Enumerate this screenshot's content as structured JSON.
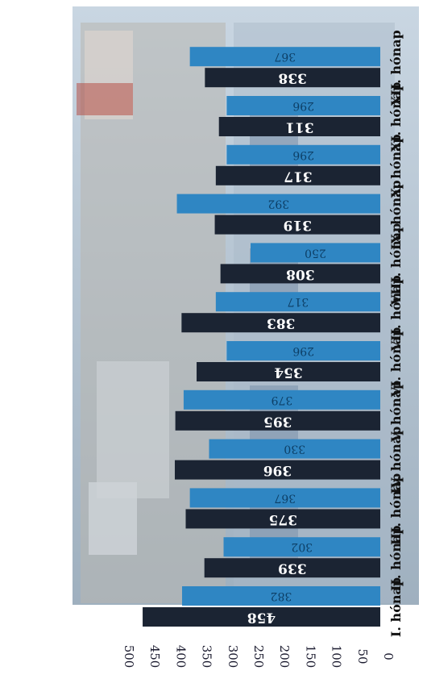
{
  "chart_data": {
    "type": "bar",
    "orientation": "horizontal",
    "value_axis_position": "left",
    "title": "",
    "categories": [
      "I. hónap",
      "II. hónap",
      "III. hónap",
      "IV. hónap",
      "V. hónap",
      "VI. hónap",
      "VII. hónap",
      "VIII. hónap",
      "IX. hónap",
      "X. hónap",
      "XI. hónap",
      "XII. hónap"
    ],
    "series": [
      {
        "values": [
          458,
          339,
          375,
          396,
          395,
          354,
          383,
          308,
          319,
          317,
          311,
          338
        ],
        "color": "#1b2433"
      },
      {
        "values": [
          382,
          302,
          367,
          330,
          379,
          296,
          317,
          250,
          392,
          296,
          296,
          367
        ],
        "color": "#2f86c3"
      }
    ],
    "ticks": [
      0,
      50,
      100,
      150,
      200,
      250,
      300,
      350,
      400,
      450,
      500
    ],
    "xlim": [
      0,
      500
    ],
    "grid": false,
    "legend": "none",
    "background": "photo of building facade (decorative)"
  }
}
